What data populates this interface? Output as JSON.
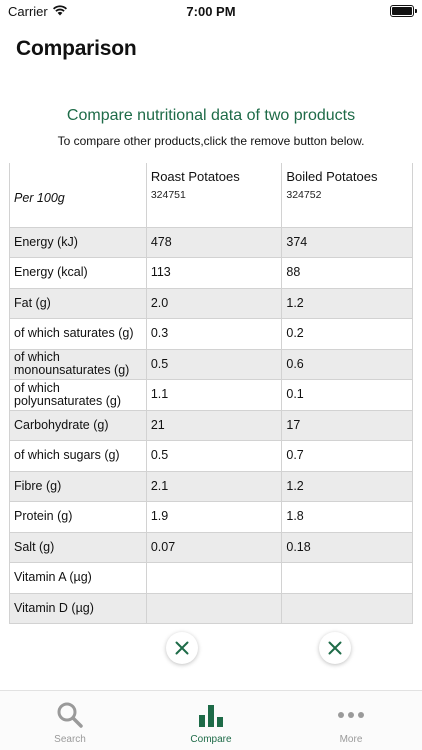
{
  "status_bar": {
    "carrier": "Carrier",
    "time": "7:00 PM"
  },
  "page_title": "Comparison",
  "heading": "Compare nutritional data of two products",
  "subheading": "To compare other products,click the remove button below.",
  "table": {
    "per_label": "Per 100g",
    "products": [
      {
        "name": "Roast Potatoes",
        "code": "324751"
      },
      {
        "name": "Boiled Potatoes",
        "code": "324752"
      }
    ],
    "rows": [
      {
        "label": "Energy (kJ)",
        "values": [
          "478",
          "374"
        ]
      },
      {
        "label": "Energy (kcal)",
        "values": [
          "113",
          "88"
        ]
      },
      {
        "label": "Fat (g)",
        "values": [
          "2.0",
          "1.2"
        ]
      },
      {
        "label": "of which saturates (g)",
        "values": [
          "0.3",
          "0.2"
        ]
      },
      {
        "label": "of which monounsaturates (g)",
        "values": [
          "0.5",
          "0.6"
        ]
      },
      {
        "label": "of which polyunsaturates (g)",
        "values": [
          "1.1",
          "0.1"
        ]
      },
      {
        "label": "Carbohydrate (g)",
        "values": [
          "21",
          "17"
        ]
      },
      {
        "label": "of which sugars (g)",
        "values": [
          "0.5",
          "0.7"
        ]
      },
      {
        "label": "Fibre (g)",
        "values": [
          "2.1",
          "1.2"
        ]
      },
      {
        "label": "Protein (g)",
        "values": [
          "1.9",
          "1.8"
        ]
      },
      {
        "label": "Salt (g)",
        "values": [
          "0.07",
          "0.18"
        ]
      },
      {
        "label": "Vitamin A (µg)",
        "values": [
          "",
          ""
        ]
      },
      {
        "label": "Vitamin D (µg)",
        "values": [
          "",
          ""
        ]
      }
    ]
  },
  "tabs": [
    {
      "label": "Search",
      "icon": "search-icon",
      "active": false
    },
    {
      "label": "Compare",
      "icon": "bar-chart-icon",
      "active": true
    },
    {
      "label": "More",
      "icon": "more-dots-icon",
      "active": false
    }
  ],
  "colors": {
    "accent": "#1e6b48",
    "shaded_row": "#ebebeb",
    "inactive_tab": "#9a9a9a"
  }
}
